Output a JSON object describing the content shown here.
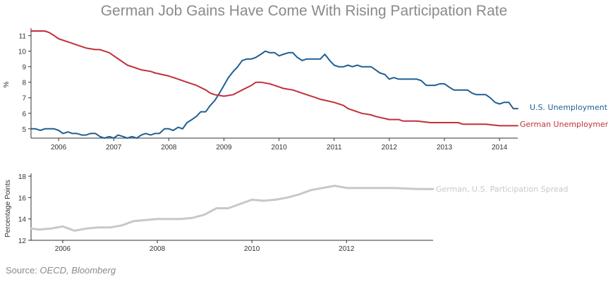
{
  "title": "German Job Gains Have Come With Rising Participation Rate",
  "source": {
    "prefix": "Source: ",
    "text": "OECD, Bloomberg"
  },
  "colors": {
    "us": "#1f5f94",
    "germany": "#c0303c",
    "spread": "#c8c8c8",
    "title": "#8a8a8a"
  },
  "chart_data": [
    {
      "type": "line",
      "title": "",
      "xlabel": "",
      "ylabel": "%",
      "xlim": [
        2005.5,
        2014.33
      ],
      "ylim": [
        4.4,
        11.3
      ],
      "y_ticks": [
        5,
        6,
        7,
        8,
        9,
        10,
        11
      ],
      "x_ticks": [
        2006,
        2007,
        2008,
        2009,
        2010,
        2011,
        2012,
        2013,
        2014
      ],
      "x_tick_labels": [
        "2006",
        "2007",
        "2008",
        "2009",
        "2010",
        "2011",
        "2012",
        "2013",
        "2014"
      ],
      "series": [
        {
          "name": "U.S. Unemployment",
          "color": "#1f5f94",
          "x": [
            2005.5,
            2005.58,
            2005.67,
            2005.75,
            2005.83,
            2005.92,
            2006.0,
            2006.08,
            2006.17,
            2006.25,
            2006.33,
            2006.42,
            2006.5,
            2006.58,
            2006.67,
            2006.75,
            2006.83,
            2006.92,
            2007.0,
            2007.08,
            2007.17,
            2007.25,
            2007.33,
            2007.42,
            2007.5,
            2007.58,
            2007.67,
            2007.75,
            2007.83,
            2007.92,
            2008.0,
            2008.08,
            2008.17,
            2008.25,
            2008.33,
            2008.42,
            2008.5,
            2008.58,
            2008.67,
            2008.75,
            2008.83,
            2008.92,
            2009.0,
            2009.08,
            2009.17,
            2009.25,
            2009.33,
            2009.42,
            2009.5,
            2009.58,
            2009.67,
            2009.75,
            2009.83,
            2009.92,
            2010.0,
            2010.08,
            2010.17,
            2010.25,
            2010.33,
            2010.42,
            2010.5,
            2010.58,
            2010.67,
            2010.75,
            2010.83,
            2010.92,
            2011.0,
            2011.08,
            2011.17,
            2011.25,
            2011.33,
            2011.42,
            2011.5,
            2011.58,
            2011.67,
            2011.75,
            2011.83,
            2011.92,
            2012.0,
            2012.08,
            2012.17,
            2012.25,
            2012.33,
            2012.42,
            2012.5,
            2012.58,
            2012.67,
            2012.75,
            2012.83,
            2012.92,
            2013.0,
            2013.08,
            2013.17,
            2013.25,
            2013.33,
            2013.42,
            2013.5,
            2013.58,
            2013.67,
            2013.75,
            2013.83,
            2013.92,
            2014.0,
            2014.08,
            2014.17,
            2014.25,
            2014.33
          ],
          "y": [
            5.0,
            5.0,
            4.9,
            5.0,
            5.0,
            5.0,
            4.9,
            4.7,
            4.8,
            4.7,
            4.7,
            4.6,
            4.6,
            4.7,
            4.7,
            4.5,
            4.4,
            4.5,
            4.4,
            4.6,
            4.5,
            4.4,
            4.5,
            4.4,
            4.6,
            4.7,
            4.6,
            4.7,
            4.7,
            5.0,
            5.0,
            4.9,
            5.1,
            5.0,
            5.4,
            5.6,
            5.8,
            6.1,
            6.1,
            6.5,
            6.8,
            7.3,
            7.8,
            8.3,
            8.7,
            9.0,
            9.4,
            9.5,
            9.5,
            9.6,
            9.8,
            10.0,
            9.9,
            9.9,
            9.7,
            9.8,
            9.9,
            9.9,
            9.6,
            9.4,
            9.5,
            9.5,
            9.5,
            9.5,
            9.8,
            9.4,
            9.1,
            9.0,
            9.0,
            9.1,
            9.0,
            9.1,
            9.0,
            9.0,
            9.0,
            8.8,
            8.6,
            8.5,
            8.2,
            8.3,
            8.2,
            8.2,
            8.2,
            8.2,
            8.2,
            8.1,
            7.8,
            7.8,
            7.8,
            7.9,
            7.9,
            7.7,
            7.5,
            7.5,
            7.5,
            7.5,
            7.3,
            7.2,
            7.2,
            7.2,
            7.0,
            6.7,
            6.6,
            6.7,
            6.7,
            6.3,
            6.3
          ]
        },
        {
          "name": "German Unemployment",
          "color": "#c0303c",
          "x": [
            2005.5,
            2005.58,
            2005.67,
            2005.75,
            2005.83,
            2005.92,
            2006.0,
            2006.25,
            2006.5,
            2006.67,
            2006.75,
            2006.92,
            2007.0,
            2007.25,
            2007.5,
            2007.67,
            2007.75,
            2008.0,
            2008.17,
            2008.33,
            2008.5,
            2008.67,
            2008.75,
            2008.83,
            2009.0,
            2009.17,
            2009.33,
            2009.5,
            2009.58,
            2009.67,
            2009.83,
            2010.0,
            2010.08,
            2010.25,
            2010.5,
            2010.67,
            2010.75,
            2011.0,
            2011.17,
            2011.25,
            2011.5,
            2011.67,
            2011.75,
            2012.0,
            2012.17,
            2012.25,
            2012.5,
            2012.75,
            2013.0,
            2013.25,
            2013.33,
            2013.5,
            2013.75,
            2014.0,
            2014.33
          ],
          "y": [
            11.3,
            11.3,
            11.3,
            11.3,
            11.2,
            11.0,
            10.8,
            10.5,
            10.2,
            10.1,
            10.1,
            9.9,
            9.7,
            9.1,
            8.8,
            8.7,
            8.6,
            8.4,
            8.2,
            8.0,
            7.8,
            7.5,
            7.3,
            7.2,
            7.1,
            7.2,
            7.5,
            7.8,
            8.0,
            8.0,
            7.9,
            7.7,
            7.6,
            7.5,
            7.2,
            7.0,
            6.9,
            6.7,
            6.5,
            6.3,
            6.0,
            5.9,
            5.8,
            5.6,
            5.6,
            5.5,
            5.5,
            5.4,
            5.4,
            5.4,
            5.3,
            5.3,
            5.3,
            5.2,
            5.2
          ]
        }
      ]
    },
    {
      "type": "line",
      "title": "",
      "xlabel": "",
      "ylabel": "Percentage Points",
      "xlim": [
        2005.33,
        2013.83
      ],
      "ylim": [
        12,
        18
      ],
      "y_ticks": [
        12,
        14,
        16,
        18
      ],
      "x_ticks": [
        2006,
        2008,
        2010,
        2012
      ],
      "x_tick_labels": [
        "2006",
        "2008",
        "2010",
        "2012"
      ],
      "series": [
        {
          "name": "German, U.S. Participation Spread",
          "color": "#c8c8c8",
          "x": [
            2005.33,
            2005.5,
            2005.75,
            2006.0,
            2006.25,
            2006.5,
            2006.75,
            2007.0,
            2007.25,
            2007.5,
            2007.75,
            2008.0,
            2008.25,
            2008.5,
            2008.75,
            2009.0,
            2009.25,
            2009.5,
            2009.75,
            2010.0,
            2010.25,
            2010.5,
            2010.75,
            2011.0,
            2011.25,
            2011.5,
            2011.75,
            2012.0,
            2012.5,
            2013.0,
            2013.5,
            2013.83
          ],
          "y": [
            13.1,
            13.0,
            13.1,
            13.3,
            12.9,
            13.1,
            13.2,
            13.2,
            13.4,
            13.8,
            13.9,
            14.0,
            14.0,
            14.0,
            14.1,
            14.4,
            15.0,
            15.0,
            15.4,
            15.8,
            15.7,
            15.8,
            16.0,
            16.3,
            16.7,
            16.9,
            17.1,
            16.9,
            16.9,
            16.9,
            16.8,
            16.8
          ]
        }
      ]
    }
  ]
}
